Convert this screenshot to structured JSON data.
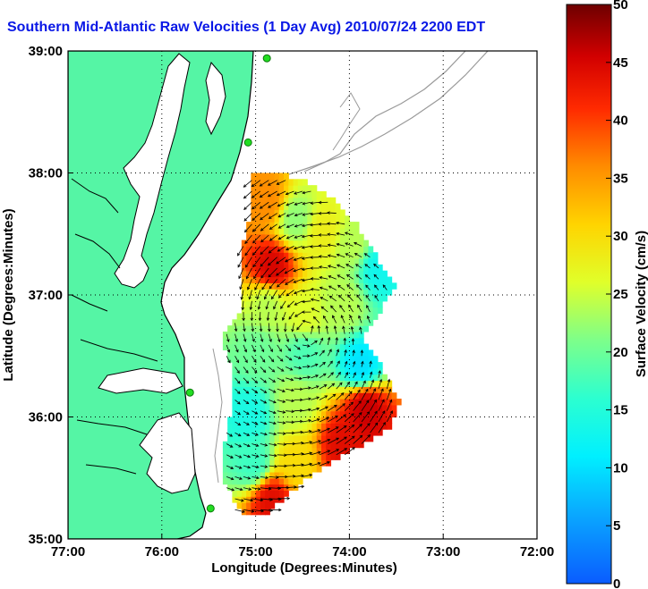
{
  "chart_data": {
    "type": "heatmap",
    "title": "Southern Mid-Atlantic Raw Velocities (1 Day Avg) 2010/07/24 2200 EDT",
    "xlabel": "Longitude (Degrees:Minutes)",
    "ylabel": "Latitude (Degrees:Minutes)",
    "x_ticks": [
      {
        "value": -77,
        "label": "77:00"
      },
      {
        "value": -76,
        "label": "76:00"
      },
      {
        "value": -75,
        "label": "75:00"
      },
      {
        "value": -74,
        "label": "74:00"
      },
      {
        "value": -73,
        "label": "73:00"
      },
      {
        "value": -72,
        "label": "72:00"
      }
    ],
    "y_ticks": [
      {
        "value": 35,
        "label": "35:00"
      },
      {
        "value": 36,
        "label": "36:00"
      },
      {
        "value": 37,
        "label": "37:00"
      },
      {
        "value": 38,
        "label": "38:00"
      },
      {
        "value": 39,
        "label": "39:00"
      }
    ],
    "xlim": [
      -77,
      -72
    ],
    "ylim": [
      35,
      39
    ],
    "grid": true,
    "colorbar": {
      "label": "Surface Velocity (cm/s)",
      "range": [
        0,
        50
      ],
      "ticks": [
        {
          "value": 0,
          "label": "0"
        },
        {
          "value": 5,
          "label": "5"
        },
        {
          "value": 10,
          "label": "10"
        },
        {
          "value": 15,
          "label": "15"
        },
        {
          "value": 20,
          "label": "20"
        },
        {
          "value": 25,
          "label": "25"
        },
        {
          "value": 30,
          "label": "30"
        },
        {
          "value": 35,
          "label": "35"
        },
        {
          "value": 40,
          "label": "40"
        },
        {
          "value": 45,
          "label": "45"
        },
        {
          "value": 50,
          "label": "50"
        }
      ]
    },
    "land_color": "#55f5a5",
    "coast_color": "#000000",
    "bathymetry_color": "#9a9a9a",
    "stations": [
      {
        "lon": -74.88,
        "lat": 38.94
      },
      {
        "lon": -75.08,
        "lat": 38.25
      },
      {
        "lon": -75.7,
        "lat": 36.2
      },
      {
        "lon": -75.48,
        "lat": 35.25
      }
    ],
    "speed_samples": [
      {
        "lon": -74.9,
        "lat": 37.75,
        "speed": 36
      },
      {
        "lon": -74.85,
        "lat": 37.2,
        "speed": 45
      },
      {
        "lon": -74.6,
        "lat": 37.6,
        "speed": 22
      },
      {
        "lon": -74.3,
        "lat": 37.5,
        "speed": 28
      },
      {
        "lon": -74.0,
        "lat": 37.4,
        "speed": 24
      },
      {
        "lon": -73.7,
        "lat": 37.2,
        "speed": 13
      },
      {
        "lon": -74.9,
        "lat": 36.9,
        "speed": 24
      },
      {
        "lon": -74.5,
        "lat": 36.8,
        "speed": 26
      },
      {
        "lon": -74.1,
        "lat": 36.9,
        "speed": 24
      },
      {
        "lon": -75.0,
        "lat": 36.5,
        "speed": 20
      },
      {
        "lon": -74.5,
        "lat": 36.5,
        "speed": 18
      },
      {
        "lon": -73.9,
        "lat": 36.4,
        "speed": 10
      },
      {
        "lon": -75.1,
        "lat": 36.0,
        "speed": 14
      },
      {
        "lon": -74.6,
        "lat": 36.1,
        "speed": 24
      },
      {
        "lon": -73.85,
        "lat": 36.05,
        "speed": 46
      },
      {
        "lon": -75.05,
        "lat": 35.6,
        "speed": 17
      },
      {
        "lon": -74.6,
        "lat": 35.6,
        "speed": 30
      },
      {
        "lon": -74.1,
        "lat": 35.75,
        "speed": 44
      },
      {
        "lon": -74.85,
        "lat": 35.3,
        "speed": 44
      }
    ]
  }
}
